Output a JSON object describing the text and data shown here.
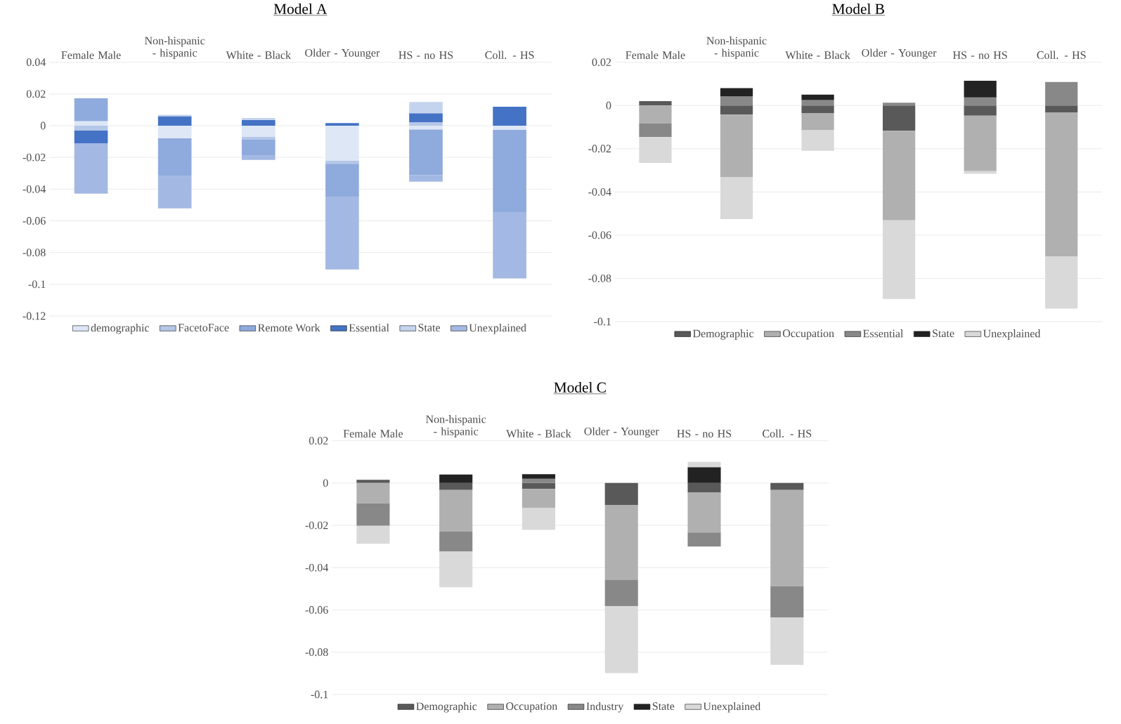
{
  "chart_data": [
    {
      "type": "bar",
      "title": "Model A",
      "categories": [
        "Female Male",
        "Non-hispanic - hispanic",
        "White - Black",
        "Older - Younger",
        "HS - no HS",
        "Coll. - HS"
      ],
      "stacked": true,
      "series": [
        {
          "name": "demographic",
          "color": "#dde7f6",
          "values": [
            0.0029,
            -0.008,
            -0.0071,
            -0.0222,
            -0.0024,
            -0.0027
          ]
        },
        {
          "name": "FacetoFace",
          "color": "#b4c7e7",
          "values": [
            -0.0031,
            null,
            -0.0018,
            -0.0018,
            0.0022,
            null
          ]
        },
        {
          "name": "Remote Work",
          "color": "#8faadc",
          "values": [
            0.0144,
            -0.0238,
            -0.01,
            -0.0211,
            -0.0287,
            -0.0518
          ]
        },
        {
          "name": "Essential",
          "color": "#4472c4",
          "values": [
            -0.008,
            0.006,
            0.0036,
            0.0016,
            0.0056,
            0.012
          ]
        },
        {
          "name": "State",
          "color": "#c5d4ee",
          "values": [
            null,
            0.0009,
            0.0013,
            null,
            0.0071,
            null
          ]
        },
        {
          "name": "Unexplained",
          "color": "#a3b9e3",
          "values": [
            -0.0318,
            -0.0204,
            -0.0027,
            -0.0456,
            -0.0042,
            -0.0418
          ]
        }
      ],
      "ylim": [
        -0.12,
        0.04
      ],
      "yticks": [
        -0.12,
        -0.1,
        -0.08,
        -0.06,
        -0.04,
        -0.02,
        0,
        0.02,
        0.04
      ],
      "grid": "y",
      "legend": "bottom"
    },
    {
      "type": "bar",
      "title": "Model B",
      "categories": [
        "Female Male",
        "Non-hispanic - hispanic",
        "White - Black",
        "Older - Younger",
        "HS - no HS",
        "Coll. - HS"
      ],
      "stacked": true,
      "series": [
        {
          "name": "Demographic",
          "color": "#595959",
          "values": [
            0.002,
            -0.0042,
            -0.0035,
            -0.0117,
            -0.0047,
            -0.0032
          ]
        },
        {
          "name": "Occupation",
          "color": "#b0b0b0",
          "values": [
            -0.0084,
            -0.0289,
            -0.008,
            -0.0414,
            -0.0257,
            -0.0666
          ]
        },
        {
          "name": "Essential",
          "color": "#888888",
          "values": [
            -0.0062,
            0.0042,
            0.0025,
            0.0013,
            0.0037,
            0.0109
          ]
        },
        {
          "name": "State",
          "color": "#222222",
          "values": [
            null,
            0.0038,
            0.0025,
            null,
            0.0077,
            null
          ]
        },
        {
          "name": "Unexplained",
          "color": "#d9d9d9",
          "values": [
            -0.012,
            -0.0195,
            -0.0095,
            -0.0364,
            -0.0012,
            -0.0242
          ]
        }
      ],
      "ylim": [
        -0.1,
        0.02
      ],
      "yticks": [
        -0.1,
        -0.08,
        -0.06,
        -0.04,
        -0.02,
        0,
        0.02
      ],
      "grid": "y",
      "legend": "bottom"
    },
    {
      "type": "bar",
      "title": "Model C",
      "categories": [
        "Female Male",
        "Non-hispanic - hispanic",
        "White - Black",
        "Older - Younger",
        "HS - no HS",
        "Coll. - HS"
      ],
      "stacked": true,
      "series": [
        {
          "name": "Demographic",
          "color": "#595959",
          "values": [
            0.0015,
            -0.0033,
            -0.0028,
            -0.0103,
            -0.0045,
            -0.0033
          ]
        },
        {
          "name": "Occupation",
          "color": "#b0b0b0",
          "values": [
            -0.0096,
            -0.0196,
            -0.009,
            -0.0356,
            -0.0189,
            -0.0455
          ]
        },
        {
          "name": "Industry",
          "color": "#888888",
          "values": [
            -0.0106,
            -0.0095,
            0.002,
            -0.0123,
            -0.0066,
            -0.0148
          ]
        },
        {
          "name": "State",
          "color": "#222222",
          "values": [
            null,
            0.004,
            0.0022,
            null,
            0.0075,
            null
          ]
        },
        {
          "name": "Unexplained",
          "color": "#d9d9d9",
          "values": [
            -0.0085,
            -0.0169,
            -0.0103,
            -0.0317,
            0.0025,
            -0.0224
          ]
        }
      ],
      "ylim": [
        -0.1,
        0.02
      ],
      "yticks": [
        -0.1,
        -0.08,
        -0.06,
        -0.04,
        -0.02,
        0,
        0.02
      ],
      "grid": "y",
      "legend": "bottom"
    }
  ]
}
